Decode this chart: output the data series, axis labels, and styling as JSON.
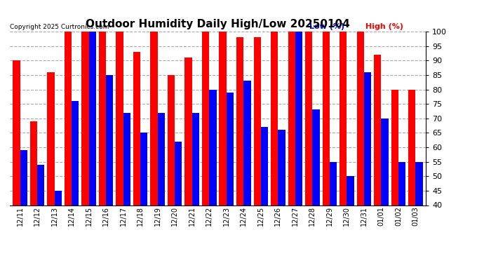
{
  "title": "Outdoor Humidity Daily High/Low 20250104",
  "copyright": "Copyright 2025 Curtronics.com",
  "legend_low_label": "Low (%)",
  "legend_high_label": "High (%)",
  "legend_low_color": "#0000ff",
  "legend_high_color": "#ff0000",
  "ylim": [
    40,
    100
  ],
  "yticks": [
    40,
    45,
    50,
    55,
    60,
    65,
    70,
    75,
    80,
    85,
    90,
    95,
    100
  ],
  "background_color": "#ffffff",
  "plot_bg_color": "#ffffff",
  "grid_color": "#aaaaaa",
  "bar_low_color": "#0000ff",
  "bar_high_color": "#ff0000",
  "bar_width": 0.42,
  "categories": [
    "12/11",
    "12/12",
    "12/13",
    "12/14",
    "12/15",
    "12/16",
    "12/17",
    "12/18",
    "12/19",
    "12/20",
    "12/21",
    "12/22",
    "12/23",
    "12/24",
    "12/25",
    "12/26",
    "12/27",
    "12/28",
    "12/29",
    "12/30",
    "12/31",
    "01/01",
    "01/02",
    "01/03"
  ],
  "high_values": [
    90,
    69,
    86,
    100,
    100,
    100,
    100,
    93,
    100,
    85,
    91,
    100,
    100,
    98,
    98,
    100,
    100,
    100,
    100,
    100,
    100,
    92,
    80,
    80
  ],
  "low_values": [
    59,
    54,
    45,
    76,
    100,
    85,
    72,
    65,
    72,
    62,
    72,
    80,
    79,
    83,
    67,
    66,
    100,
    73,
    55,
    50,
    86,
    70,
    55,
    55
  ]
}
